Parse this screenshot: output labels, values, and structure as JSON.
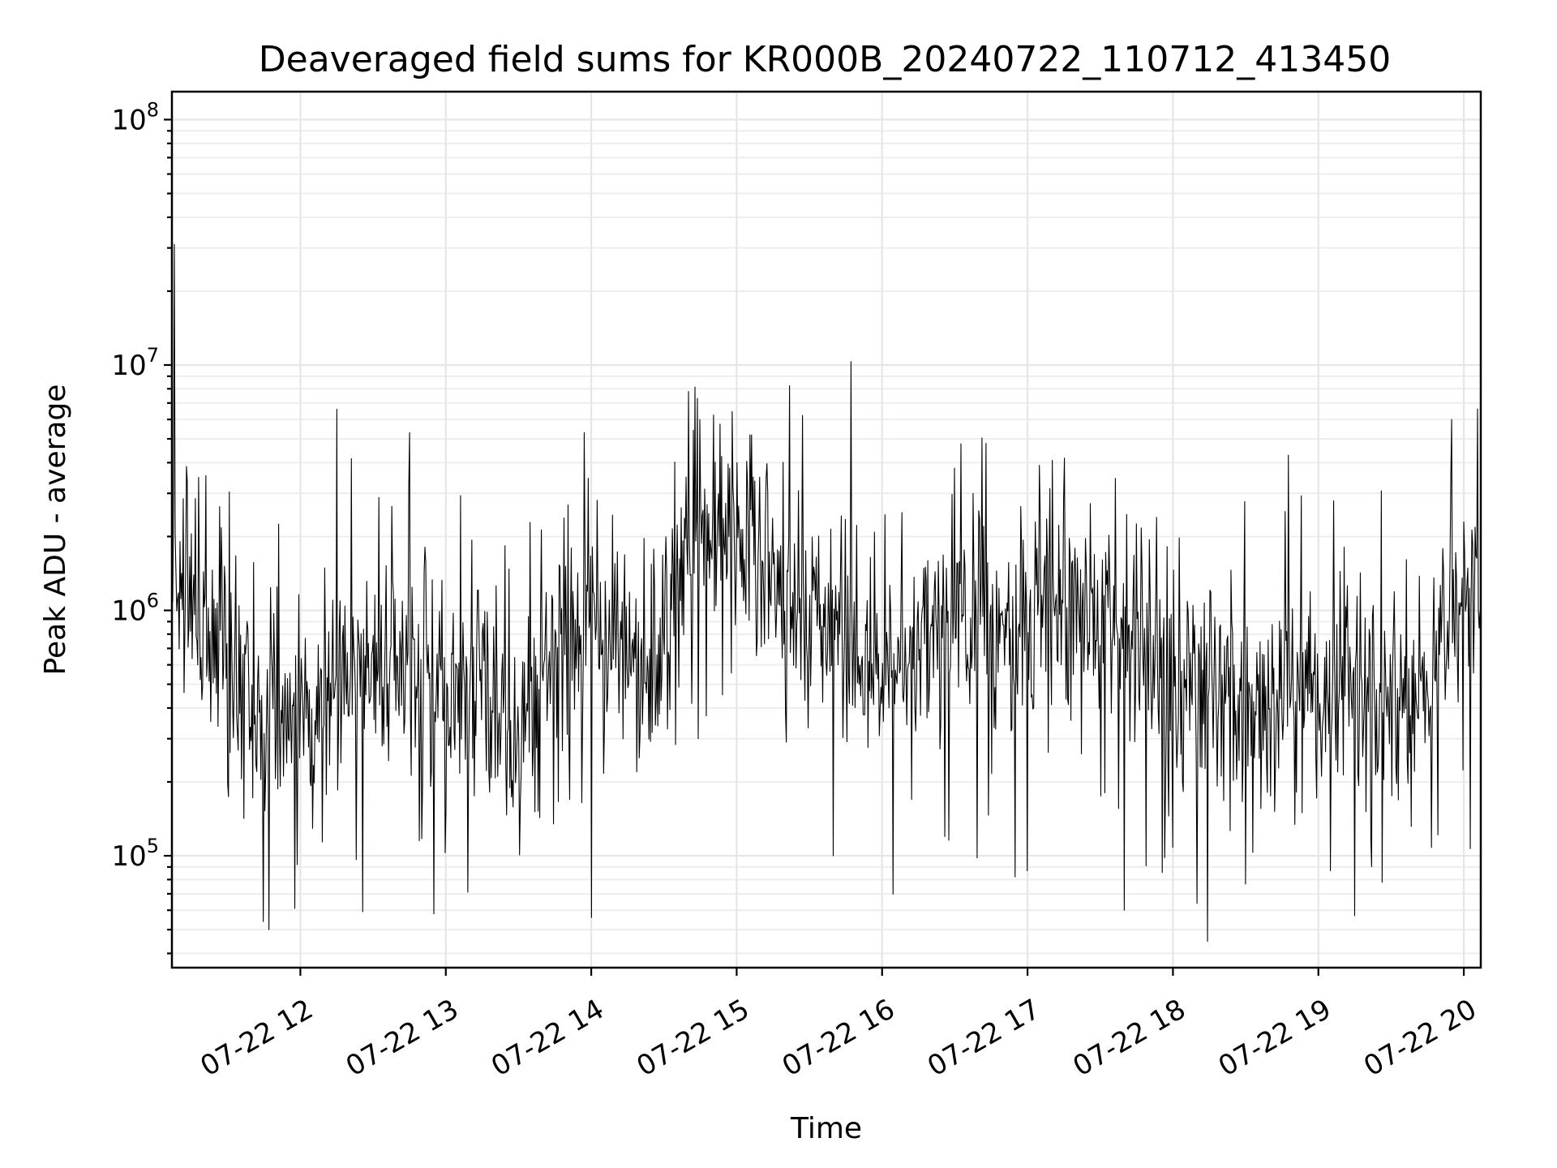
{
  "chart_data": {
    "type": "line",
    "title": "Deaveraged field sums for KR000B_20240722_110712_413450",
    "xlabel": "Time",
    "ylabel": "Peak ADU - average",
    "yscale": "log",
    "ylim": [
      35000,
      130000000
    ],
    "xlim": [
      "2024-07-22 11:07",
      "2024-07-22 20:07"
    ],
    "grid": true,
    "legend": "none",
    "line_color": "#000000",
    "x_ticks": [
      "07-22 12",
      "07-22 13",
      "07-22 14",
      "07-22 15",
      "07-22 16",
      "07-22 17",
      "07-22 18",
      "07-22 19",
      "07-22 20"
    ],
    "y_ticks": [
      {
        "base": "10",
        "exp": "5",
        "value": 100000
      },
      {
        "base": "10",
        "exp": "6",
        "value": 1000000
      },
      {
        "base": "10",
        "exp": "7",
        "value": 10000000
      },
      {
        "base": "10",
        "exp": "8",
        "value": 100000000
      }
    ],
    "series": [
      {
        "x": [
          "2024-07-22 11:07",
          "2024-07-22 11:15",
          "2024-07-22 11:30",
          "2024-07-22 11:45",
          "2024-07-22 12:00",
          "2024-07-22 12:10",
          "2024-07-22 12:30",
          "2024-07-22 12:45",
          "2024-07-22 13:00",
          "2024-07-22 13:15",
          "2024-07-22 13:30",
          "2024-07-22 13:45",
          "2024-07-22 14:00",
          "2024-07-22 14:15",
          "2024-07-22 14:30",
          "2024-07-22 14:45",
          "2024-07-22 15:00",
          "2024-07-22 15:15",
          "2024-07-22 15:30",
          "2024-07-22 15:45",
          "2024-07-22 16:00",
          "2024-07-22 16:15",
          "2024-07-22 16:30",
          "2024-07-22 16:45",
          "2024-07-22 17:00",
          "2024-07-22 17:15",
          "2024-07-22 17:30",
          "2024-07-22 17:45",
          "2024-07-22 18:00",
          "2024-07-22 18:15",
          "2024-07-22 18:30",
          "2024-07-22 18:45",
          "2024-07-22 19:00",
          "2024-07-22 19:15",
          "2024-07-22 19:30",
          "2024-07-22 19:45",
          "2024-07-22 20:00",
          "2024-07-22 20:07"
        ],
        "y": [
          1500000,
          1000000,
          700000,
          350000,
          300000,
          450000,
          600000,
          650000,
          400000,
          550000,
          250000,
          700000,
          1000000,
          600000,
          700000,
          2000000,
          1800000,
          1300000,
          1000000,
          700000,
          600000,
          800000,
          1000000,
          900000,
          800000,
          1000000,
          900000,
          700000,
          500000,
          450000,
          400000,
          500000,
          450000,
          500000,
          400000,
          500000,
          1300000,
          1200000
        ],
        "peaks": [
          {
            "x": "2024-07-22 11:08",
            "y": 31000000
          },
          {
            "x": "2024-07-22 12:15",
            "y": 6600000
          },
          {
            "x": "2024-07-22 12:45",
            "y": 5300000
          },
          {
            "x": "2024-07-22 13:57",
            "y": 5300000
          },
          {
            "x": "2024-07-22 14:40",
            "y": 7800000
          },
          {
            "x": "2024-07-22 15:00",
            "y": 4000000
          },
          {
            "x": "2024-07-22 16:30",
            "y": 3800000
          },
          {
            "x": "2024-07-22 17:05",
            "y": 3900000
          },
          {
            "x": "2024-07-22 19:55",
            "y": 6000000
          }
        ],
        "troughs": [
          {
            "x": "2024-07-22 11:47",
            "y": 50000
          },
          {
            "x": "2024-07-22 12:55",
            "y": 58000
          },
          {
            "x": "2024-07-22 14:00",
            "y": 56000
          },
          {
            "x": "2024-07-22 15:40",
            "y": 100000
          },
          {
            "x": "2024-07-22 16:55",
            "y": 82000
          },
          {
            "x": "2024-07-22 17:40",
            "y": 60000
          },
          {
            "x": "2024-07-22 18:10",
            "y": 64000
          },
          {
            "x": "2024-07-22 19:15",
            "y": 57000
          }
        ]
      }
    ]
  }
}
